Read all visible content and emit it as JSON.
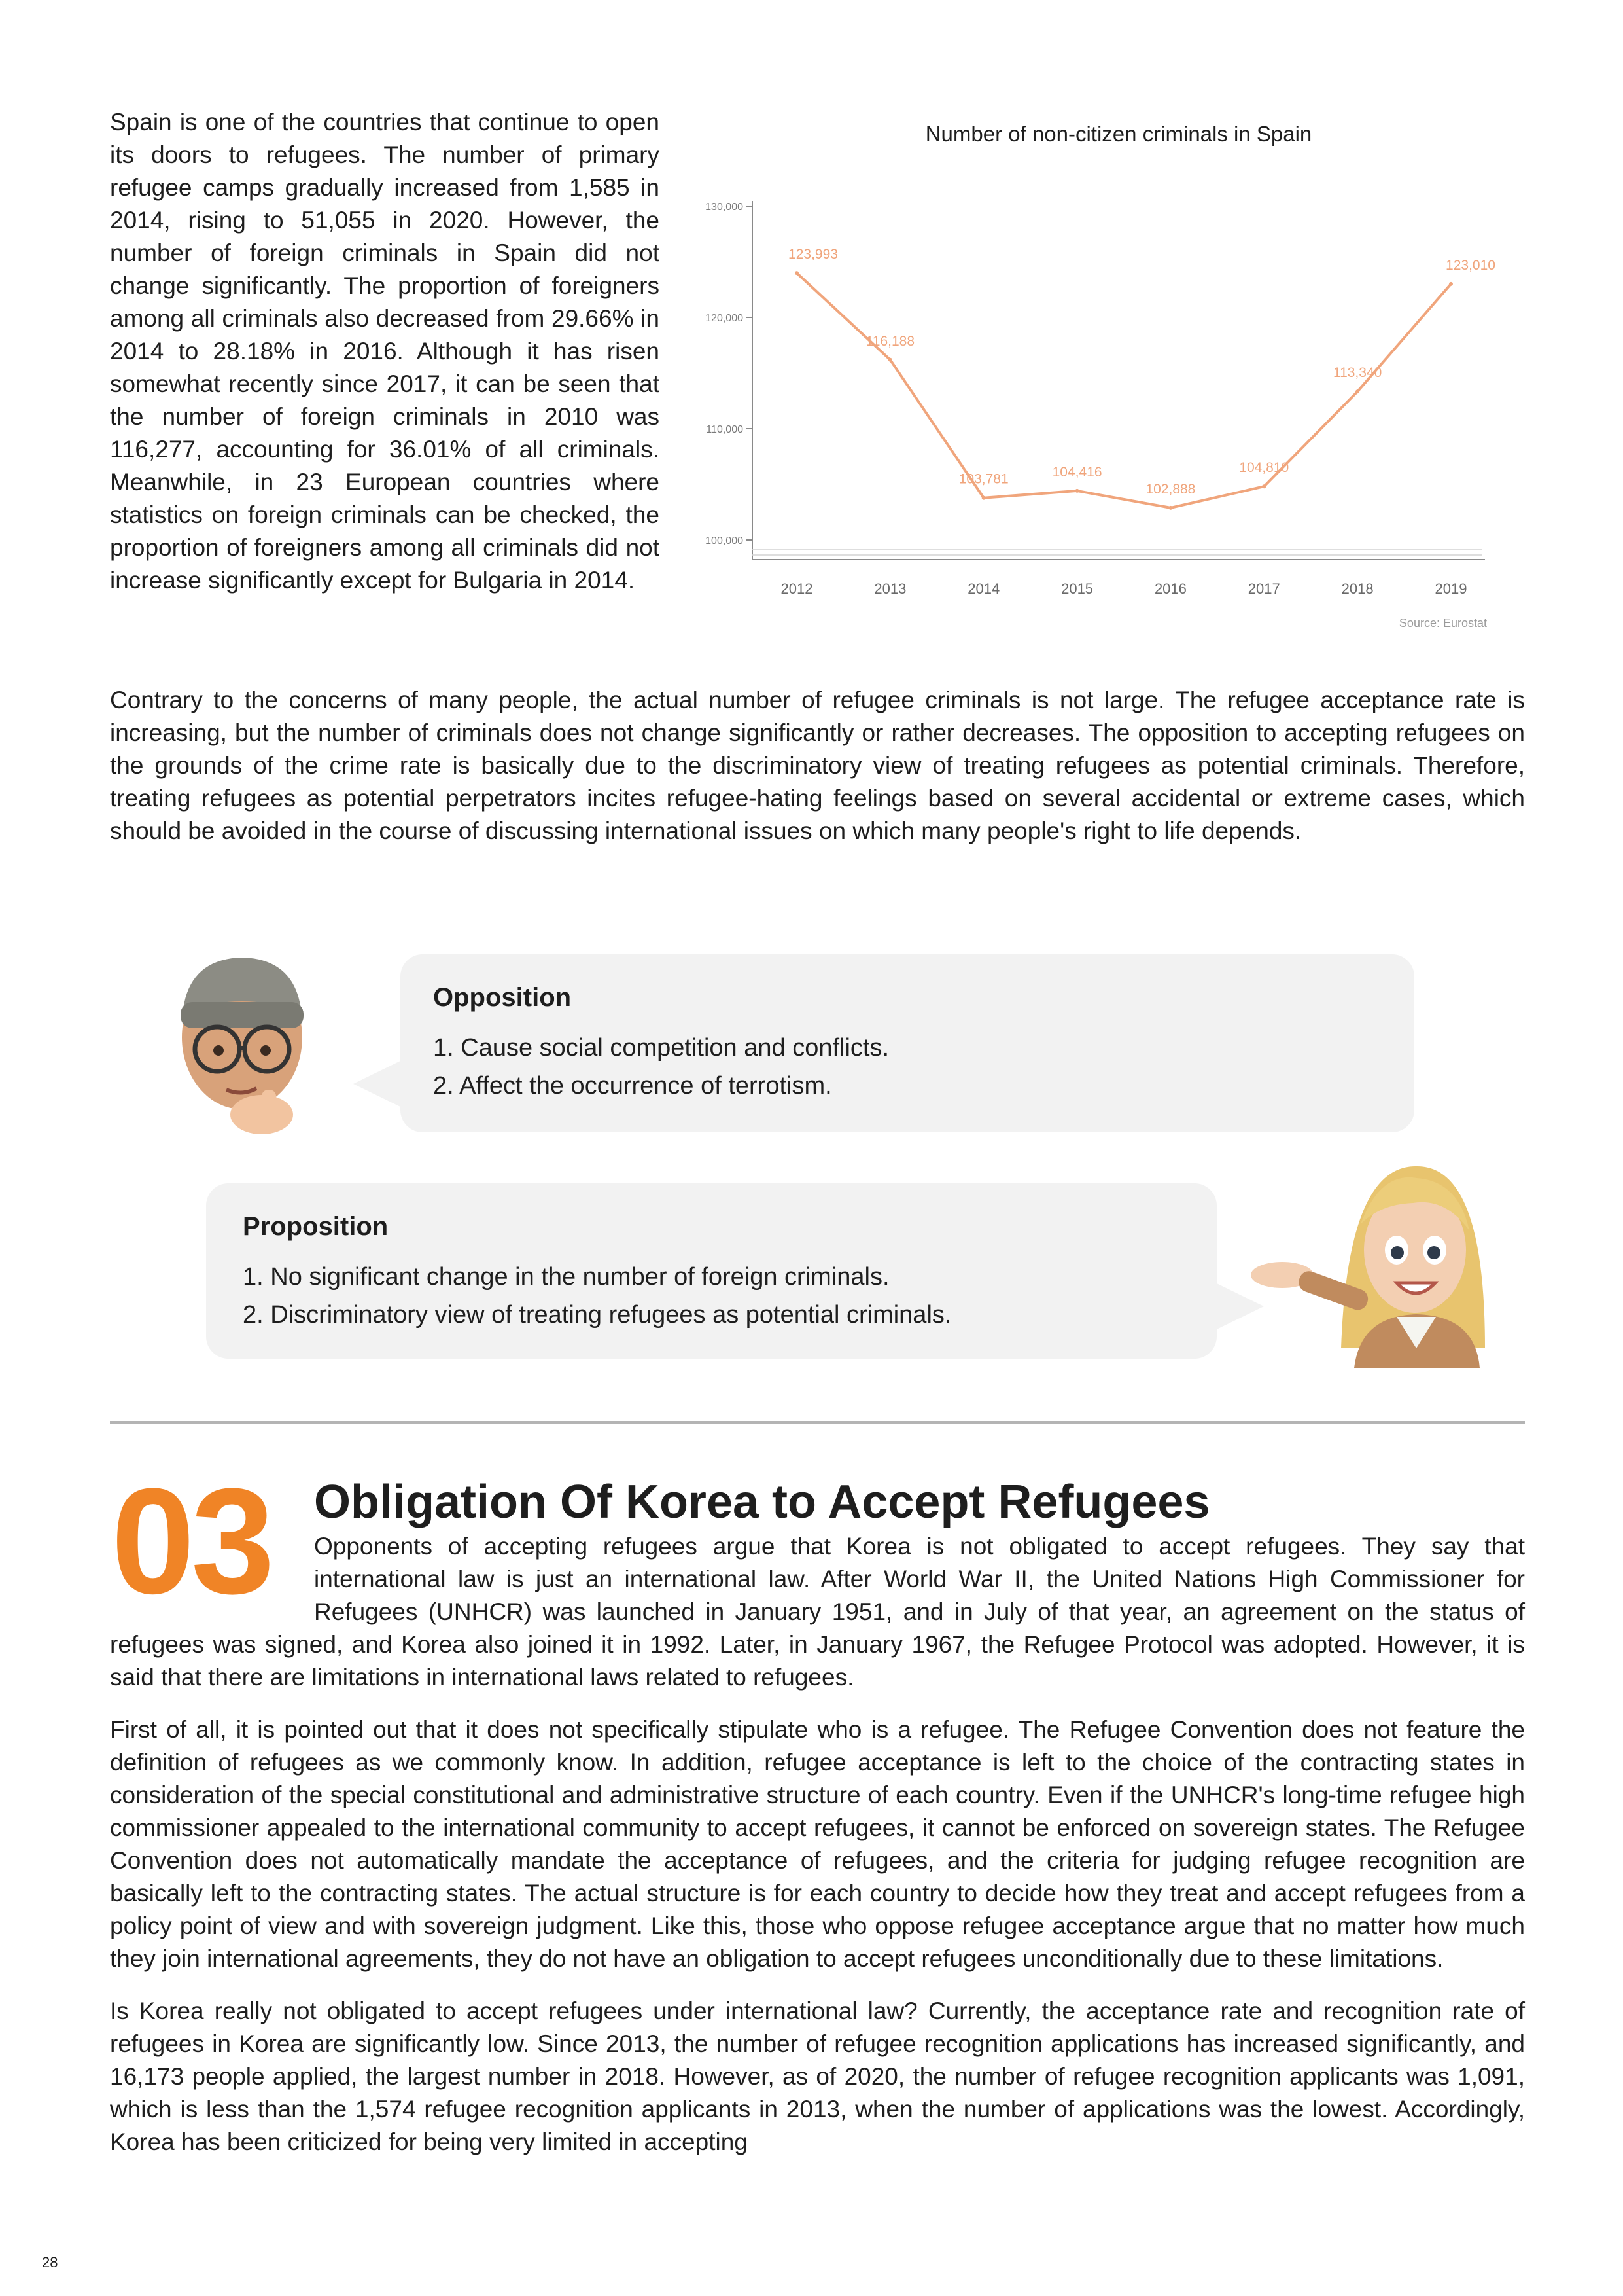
{
  "intro_text": "Spain is one of the countries that continue to open its doors to refugees. The number of primary refugee camps gradually increased from 1,585 in 2014, rising to 51,055 in 2020. However, the number of foreign criminals in Spain did not change significantly. The proportion of foreigners among all criminals also decreased from 29.66% in 2014 to 28.18% in 2016. Although it has risen somewhat recently since 2017, it can be seen that the number of foreign criminals in 2010 was 116,277, accounting for 36.01% of all criminals. Meanwhile, in 23 European countries where statistics on foreign criminals can be checked, the proportion of foreigners among all criminals did not increase significantly except for Bulgaria in 2014.",
  "chart_data": {
    "type": "line",
    "title": "Number of non-citizen criminals in Spain",
    "x": [
      "2012",
      "2013",
      "2014",
      "2015",
      "2016",
      "2017",
      "2018",
      "2019"
    ],
    "series": [
      {
        "values": [
          123993,
          116188,
          103781,
          104416,
          102888,
          104810,
          113340,
          123010
        ],
        "labels": [
          "123,993",
          "116,188",
          "103,781",
          "104,416",
          "102,888",
          "104,810",
          "113,340",
          "123,010"
        ],
        "color": "#f0a57c"
      }
    ],
    "yticks": [
      {
        "value": 100000,
        "label": "100,000"
      },
      {
        "value": 110000,
        "label": "110,000"
      },
      {
        "value": 120000,
        "label": "120,000"
      },
      {
        "value": 130000,
        "label": "130,000"
      }
    ],
    "ylim": [
      100000,
      130000
    ],
    "grid": false,
    "source": "Source: Eurostat"
  },
  "concerns_text": "Contrary to the concerns of many people, the actual number of refugee criminals is not large. The refugee acceptance rate is increasing, but the number of criminals does not change significantly or rather decreases. The opposition to accepting refugees on the grounds of the crime rate is basically due to the discriminatory view of treating refugees as potential criminals. Therefore, treating refugees as potential perpetrators incites refugee-hating feelings based on several accidental or extreme cases, which should be avoided in the course of discussing international issues on which many people's right to life depends.",
  "opposition": {
    "heading": "Opposition",
    "items": [
      "1. Cause social competition and conflicts.",
      "2. Affect the occurrence of terrotism."
    ]
  },
  "proposition": {
    "heading": "Proposition",
    "items": [
      "1. No significant change in the number of foreign criminals.",
      "2. Discriminatory view of treating refugees as potential criminals."
    ]
  },
  "section": {
    "number": "03",
    "title": "Obligation Of Korea to Accept Refugees",
    "paragraphs": [
      "Opponents of accepting refugees argue that Korea is not obligated to accept refugees. They say that international law is just an international law. After World War II, the United Nations High Commissioner for Refugees (UNHCR) was launched in January 1951, and in July of that year, an agreement on the status of refugees was signed, and Korea also joined it in 1992. Later, in January 1967, the Refugee Protocol was adopted. However, it is said that there are limitations in international laws related to refugees.",
      "First of all, it is pointed out that it does not specifically stipulate who is a refugee. The Refugee Convention does not feature the definition of refugees as we commonly know. In addition, refugee acceptance is left to the choice of the contracting states in consideration of the special constitutional and administrative structure of each country. Even if the UNHCR's long-time refugee high commissioner appealed to the international community to accept refugees, it cannot be enforced on sovereign states. The Refugee Convention does not automatically mandate the acceptance of refugees, and the criteria for judging refugee recognition are basically left to the contracting states. The actual structure is for each country to decide how they treat and accept refugees from a policy point of view and with sovereign judgment. Like this, those who oppose refugee acceptance argue that no matter how much they join international agreements, they do not have an obligation to accept refugees unconditionally due to these limitations.",
      "Is Korea really not obligated to accept refugees under international law? Currently, the acceptance rate and recognition rate of refugees in Korea are significantly low. Since 2013, the number of refugee recognition applications has increased significantly, and 16,173 people applied, the largest number in 2018. However, as of 2020, the number of refugee recognition applicants was 1,091, which is less than the 1,574 refugee recognition applicants in 2013, when the number of applications was the lowest. Accordingly, Korea has been criticized for being very limited in accepting"
    ]
  },
  "page_number": "28"
}
